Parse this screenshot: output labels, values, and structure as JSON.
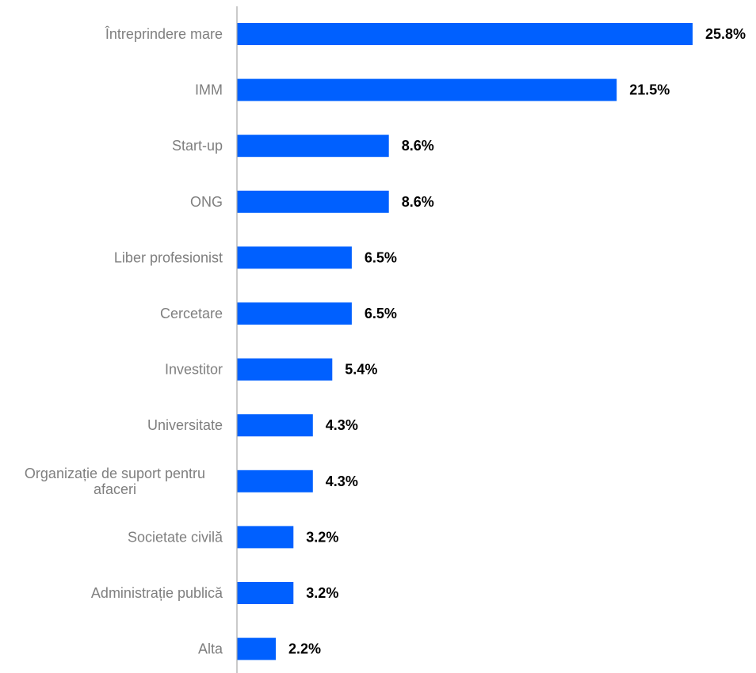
{
  "chart_data": {
    "type": "bar",
    "orientation": "horizontal",
    "categories": [
      "Întreprindere mare",
      "IMM",
      "Start-up",
      "ONG",
      "Liber profesionist",
      "Cercetare",
      "Investitor",
      "Universitate",
      "Organizație de suport pentru afaceri",
      "Societate civilă",
      "Administrație publică",
      "Alta"
    ],
    "values": [
      25.8,
      21.5,
      8.6,
      8.6,
      6.5,
      6.5,
      5.4,
      4.3,
      4.3,
      3.2,
      3.2,
      2.2
    ],
    "value_labels": [
      "25.8%",
      "21.5%",
      "8.6%",
      "8.6%",
      "6.5%",
      "6.5%",
      "5.4%",
      "4.3%",
      "4.3%",
      "3.2%",
      "3.2%",
      "2.2%"
    ],
    "unit": "%",
    "title": "",
    "xlabel": "",
    "ylabel": "",
    "xlim": [
      0,
      25.8
    ],
    "grid": false,
    "legend": "none",
    "bar_color": "#0060ff",
    "axis_color": "#a6a6a6",
    "category_label_color": "#7f7f7f",
    "value_label_color": "#000000"
  }
}
